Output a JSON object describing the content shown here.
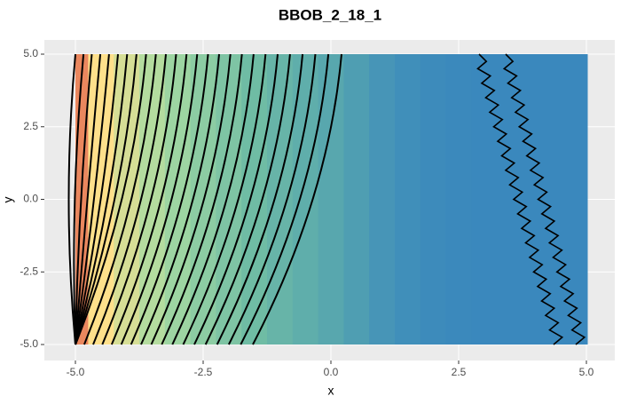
{
  "chart_data": {
    "type": "heatmap",
    "title": "BBOB_2_18_1",
    "x_label": "x",
    "y_label": "y",
    "xlim": [
      -5.0,
      5.0
    ],
    "ylim": [
      -5.0,
      5.0
    ],
    "xticks": [
      {
        "value": -5,
        "label": "-5.0"
      },
      {
        "value": -2.5,
        "label": "-2.5"
      },
      {
        "value": 0,
        "label": "0.0"
      },
      {
        "value": 2.5,
        "label": "2.5"
      },
      {
        "value": 5,
        "label": "5.0"
      }
    ],
    "yticks": [
      {
        "value": -5,
        "label": "-5.0"
      },
      {
        "value": -2.5,
        "label": "-2.5"
      },
      {
        "value": 0,
        "label": "0.0"
      },
      {
        "value": 2.5,
        "label": "2.5"
      },
      {
        "value": 5,
        "label": "5.0"
      }
    ],
    "x": [
      -5,
      -4.5,
      -4,
      -3.5,
      -3,
      -2.5,
      -2,
      -1.5,
      -1,
      -0.5,
      0,
      0.5,
      1,
      1.5,
      2,
      2.5,
      3,
      3.5,
      4,
      4.5,
      5
    ],
    "z": [
      0.95,
      0.85,
      0.78,
      0.72,
      0.66,
      0.6,
      0.55,
      0.5,
      0.42,
      0.35,
      0.28,
      0.2,
      0.12,
      0.06,
      0.03,
      0.01,
      0,
      0,
      0,
      0,
      0
    ],
    "zlim": [
      0,
      1
    ],
    "colorscale": [
      [
        0,
        "#3a88bd"
      ],
      [
        0.3,
        "#5aa9ad"
      ],
      [
        0.5,
        "#6fbca4"
      ],
      [
        0.7,
        "#a9dba2"
      ],
      [
        0.85,
        "#fee08b"
      ],
      [
        1,
        "#e05a48"
      ]
    ],
    "grid": true
  }
}
